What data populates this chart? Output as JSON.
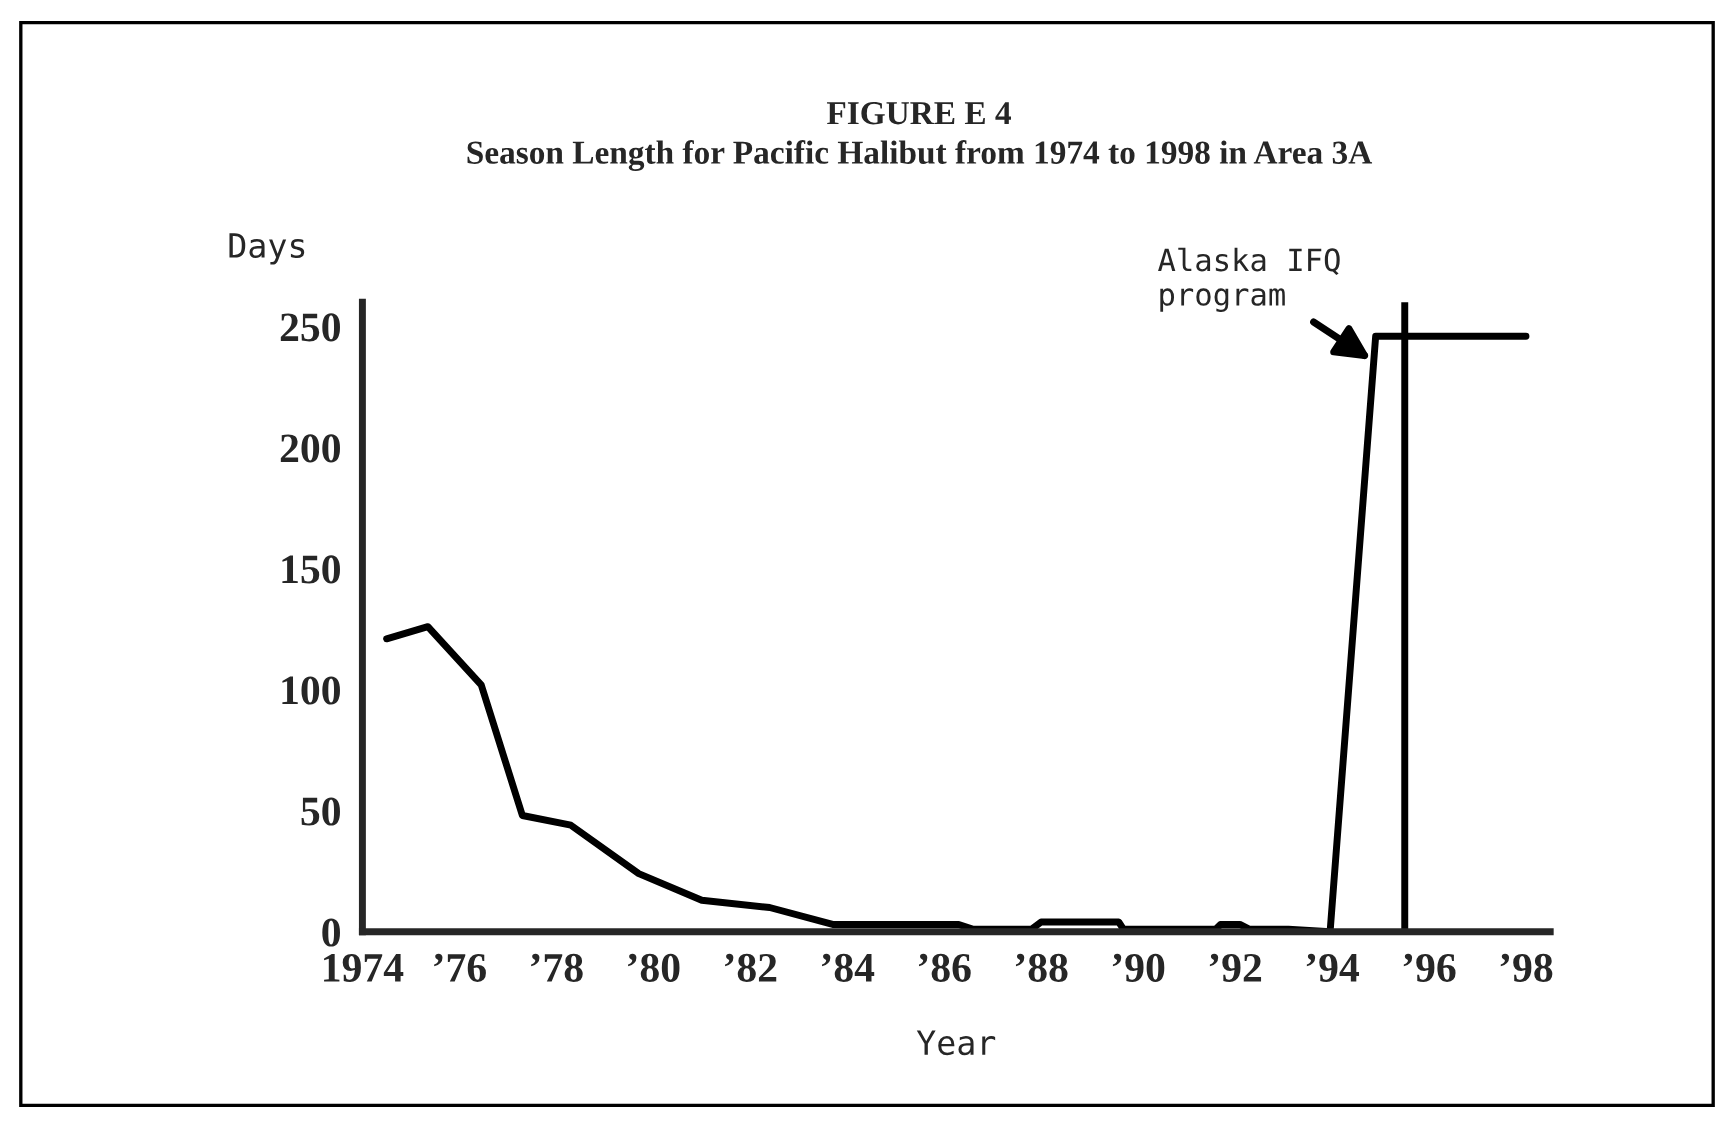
{
  "chart_data": {
    "type": "line",
    "title": "FIGURE E 4",
    "subtitle": "Season Length for Pacific Halibut from 1974 to 1998 in Area 3A",
    "xlabel": "Year",
    "ylabel": "Days",
    "series": [
      {
        "color": "#000000",
        "x": [
          1974.5,
          1975.35,
          1976.45,
          1977.3,
          1978.3,
          1979.7,
          1981.0,
          1982.4,
          1983.7,
          1986.3,
          1986.6,
          1987.8,
          1988.0,
          1989.6,
          1989.7,
          1991.6,
          1991.7,
          1992.1,
          1992.3,
          1993.1,
          1993.96,
          1994.9,
          1998.0
        ],
        "values": [
          121,
          126,
          102,
          48,
          44,
          24,
          13,
          10,
          3,
          3,
          1,
          1,
          4,
          4,
          1,
          1,
          3,
          3,
          1,
          1,
          0,
          246,
          246
        ]
      }
    ],
    "xlim": [
      1974,
      1998.5
    ],
    "ylim": [
      0,
      260
    ],
    "xticks": [
      1974,
      {
        "value": 1976,
        "label": "’76"
      },
      {
        "value": 1978,
        "label": "’78"
      },
      {
        "value": 1980,
        "label": "’80"
      },
      {
        "value": 1982,
        "label": "’82"
      },
      {
        "value": 1984,
        "label": "’84"
      },
      {
        "value": 1986,
        "label": "’86"
      },
      {
        "value": 1988,
        "label": "’88"
      },
      {
        "value": 1990,
        "label": "’90"
      },
      {
        "value": 1992,
        "label": "’92"
      },
      {
        "value": 1994,
        "label": "’94"
      },
      {
        "value": 1996,
        "label": "’96"
      },
      {
        "value": 1998,
        "label": "’98"
      }
    ],
    "yticks": [
      0,
      50,
      100,
      150,
      200,
      250
    ],
    "ref_lines": [
      {
        "axis": "x",
        "value": 1995.5,
        "color": "#000000"
      }
    ],
    "annotations": [
      {
        "text": "Alaska IFQ program",
        "x": 1994.9,
        "y": 235
      }
    ],
    "grid": false,
    "marker": "none",
    "line_style": "solid"
  }
}
